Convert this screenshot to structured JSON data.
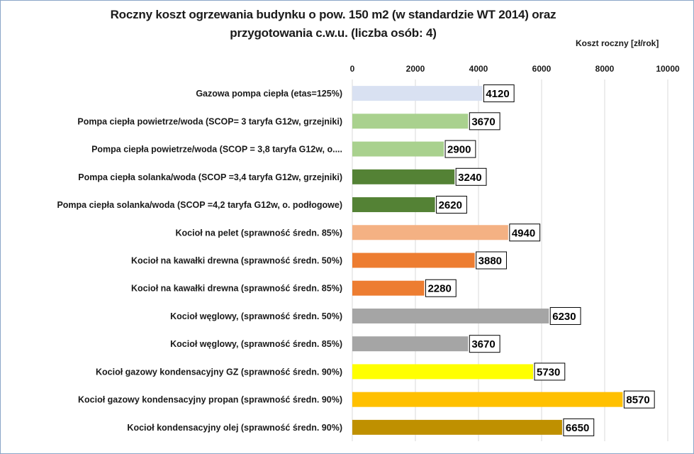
{
  "chart_data": {
    "type": "bar",
    "orientation": "horizontal",
    "title_line1": "Roczny koszt  ogrzewania budynku o pow. 150 m2 (w standardzie  WT 2014) oraz",
    "title_line2": "przygotowania  c.w.u. (liczba osób: 4)",
    "xlabel": "Koszt roczny [zł/rok]",
    "ylabel": "",
    "xlim": [
      0,
      10000
    ],
    "ticks": [
      "0",
      "2000",
      "4000",
      "6000",
      "8000",
      "10000"
    ],
    "tick_values": [
      0,
      2000,
      4000,
      6000,
      8000,
      10000
    ],
    "axis_position": "top",
    "grid": true,
    "categories": [
      "Gazowa pompa ciepła (etas=125%)",
      "Pompa ciepła powietrze/woda (SCOP= 3 taryfa G12w, grzejniki)",
      "Pompa ciepła powietrze/woda (SCOP = 3,8 taryfa G12w, o....",
      "Pompa ciepła solanka/woda (SCOP =3,4 taryfa G12w, grzejniki)",
      "Pompa ciepła solanka/woda (SCOP =4,2 taryfa G12w, o. podłogowe)",
      "Kocioł na pelet (sprawność średn. 85%)",
      "Kocioł na kawałki drewna (sprawność średn. 50%)",
      "Kocioł na kawałki drewna (sprawność średn. 85%)",
      "Kocioł węglowy,  (sprawność średn. 50%)",
      "Kocioł węglowy,  (sprawność średn. 85%)",
      "Kocioł gazowy kondensacyjny GZ (sprawność średn. 90%)",
      "Kocioł gazowy kondensacyjny propan (sprawność średn. 90%)",
      "Kocioł  kondensacyjny olej (sprawność średn. 90%)"
    ],
    "values": [
      4120,
      3670,
      2900,
      3240,
      2620,
      4940,
      3880,
      2280,
      6230,
      3670,
      5730,
      8570,
      6650
    ],
    "colors": [
      "#d9e1f2",
      "#a9d18e",
      "#a9d18e",
      "#548235",
      "#548235",
      "#f4b183",
      "#ed7d31",
      "#ed7d31",
      "#a5a5a5",
      "#a5a5a5",
      "#ffff00",
      "#ffc000",
      "#bf9000"
    ],
    "data_labels": [
      "4120",
      "3670",
      "2900",
      "3240",
      "2620",
      "4940",
      "3880",
      "2280",
      "6230",
      "3670",
      "5730",
      "8570",
      "6650"
    ]
  }
}
